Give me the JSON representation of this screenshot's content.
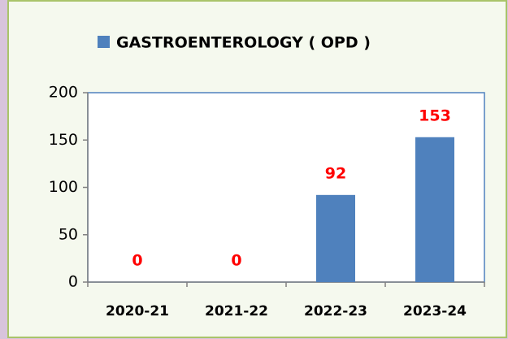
{
  "chart_data": {
    "type": "bar",
    "categories": [
      "2020-21",
      "2021-22",
      "2022-23",
      "2023-24"
    ],
    "series": [
      {
        "name": "GASTROENTEROLOGY ( OPD )",
        "color": "#4f81bd",
        "values": [
          0,
          0,
          92,
          153
        ]
      }
    ],
    "value_label_color": "#ff0000",
    "ylim": [
      0,
      200
    ],
    "yticks": [
      0,
      50,
      100,
      150,
      200
    ],
    "legend": "top"
  }
}
